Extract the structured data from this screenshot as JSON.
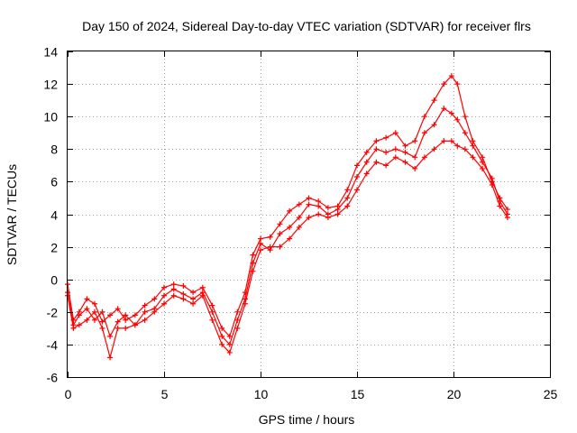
{
  "chart_data": {
    "type": "scatter",
    "title": "Day 150 of 2024, Sidereal Day-to-day VTEC variation (SDTVAR) for receiver flrs",
    "xlabel": "GPS time / hours",
    "ylabel": "SDTVAR / TECUs",
    "xlim": [
      0,
      25
    ],
    "ylim": [
      -6,
      14
    ],
    "xticks": [
      0,
      5,
      10,
      15,
      20,
      25
    ],
    "yticks": [
      -6,
      -4,
      -2,
      0,
      2,
      4,
      6,
      8,
      10,
      12,
      14
    ],
    "grid": true,
    "marker": "plus",
    "color": "#ff0000",
    "series": [
      {
        "x": [
          0.0,
          0.3,
          0.6,
          1.0,
          1.4,
          1.8,
          2.2,
          2.6,
          3.0,
          3.5,
          4.0,
          4.5,
          5.0,
          5.5,
          6.0,
          6.5,
          7.0,
          7.5,
          8.0,
          8.4,
          8.8,
          9.2,
          9.6,
          10.0,
          10.5,
          11.0,
          11.5,
          12.0,
          12.5,
          13.0,
          13.5,
          14.0,
          14.5,
          15.0,
          15.5,
          16.0,
          16.5,
          17.0,
          17.5,
          18.0,
          18.5,
          19.0,
          19.5,
          19.9,
          20.2,
          20.6,
          21.0,
          21.5,
          22.0,
          22.4,
          22.8
        ],
        "y": [
          -0.3,
          -2.5,
          -2.0,
          -1.2,
          -1.5,
          -2.6,
          -2.2,
          -1.8,
          -2.5,
          -2.2,
          -1.6,
          -1.2,
          -0.5,
          -0.3,
          -0.4,
          -0.8,
          -0.5,
          -1.6,
          -3.0,
          -3.5,
          -2.0,
          -0.8,
          1.5,
          2.5,
          2.6,
          3.4,
          4.2,
          4.6,
          5.0,
          4.8,
          4.4,
          4.5,
          5.5,
          7.0,
          7.8,
          8.5,
          8.7,
          9.0,
          8.2,
          8.5,
          10.0,
          11.0,
          12.0,
          12.5,
          12.0,
          10.0,
          8.5,
          7.5,
          6.0,
          5.0,
          4.3
        ]
      },
      {
        "x": [
          0.0,
          0.3,
          0.6,
          1.0,
          1.4,
          1.8,
          2.2,
          2.6,
          3.0,
          3.5,
          4.0,
          4.5,
          5.0,
          5.5,
          6.0,
          6.5,
          7.0,
          7.5,
          8.0,
          8.4,
          8.8,
          9.2,
          9.6,
          10.0,
          10.5,
          11.0,
          11.5,
          12.0,
          12.5,
          13.0,
          13.5,
          14.0,
          14.5,
          15.0,
          15.5,
          16.0,
          16.5,
          17.0,
          17.5,
          18.0,
          18.5,
          19.0,
          19.5,
          19.9,
          20.2,
          20.6,
          21.0,
          21.5,
          22.0,
          22.4,
          22.8
        ],
        "y": [
          -1.0,
          -3.0,
          -2.8,
          -2.5,
          -2.0,
          -3.0,
          -4.8,
          -3.0,
          -3.0,
          -2.8,
          -2.5,
          -2.0,
          -1.5,
          -1.0,
          -1.2,
          -1.5,
          -1.0,
          -2.5,
          -4.0,
          -4.5,
          -3.0,
          -1.5,
          0.5,
          1.8,
          2.0,
          2.0,
          2.5,
          3.2,
          3.8,
          4.0,
          3.8,
          4.0,
          4.5,
          5.5,
          6.5,
          7.2,
          7.0,
          7.5,
          7.2,
          6.8,
          7.5,
          8.0,
          8.5,
          8.5,
          8.2,
          8.0,
          7.5,
          6.8,
          5.8,
          4.5,
          3.8
        ]
      },
      {
        "x": [
          0.0,
          0.3,
          0.6,
          1.0,
          1.4,
          1.8,
          2.2,
          2.6,
          3.0,
          3.5,
          4.0,
          4.5,
          5.0,
          5.5,
          6.0,
          6.5,
          7.0,
          7.5,
          8.0,
          8.4,
          8.8,
          9.2,
          9.6,
          10.0,
          10.5,
          11.0,
          11.5,
          12.0,
          12.5,
          13.0,
          13.5,
          14.0,
          14.5,
          15.0,
          15.5,
          16.0,
          16.5,
          17.0,
          17.5,
          18.0,
          18.5,
          19.0,
          19.5,
          19.9,
          20.2,
          20.6,
          21.0,
          21.5,
          22.0,
          22.4,
          22.8
        ],
        "y": [
          -0.8,
          -2.8,
          -2.2,
          -1.8,
          -2.5,
          -2.0,
          -3.5,
          -2.6,
          -2.2,
          -2.8,
          -2.0,
          -1.8,
          -1.0,
          -0.6,
          -0.9,
          -1.2,
          -0.8,
          -2.0,
          -3.5,
          -4.0,
          -2.5,
          -1.2,
          1.0,
          2.2,
          1.8,
          2.8,
          3.2,
          3.8,
          4.6,
          4.5,
          4.0,
          4.3,
          5.0,
          6.3,
          7.2,
          8.0,
          7.8,
          8.0,
          7.8,
          7.5,
          9.0,
          9.5,
          10.5,
          10.2,
          9.8,
          9.0,
          8.2,
          7.2,
          6.2,
          4.8,
          4.0
        ]
      }
    ]
  }
}
